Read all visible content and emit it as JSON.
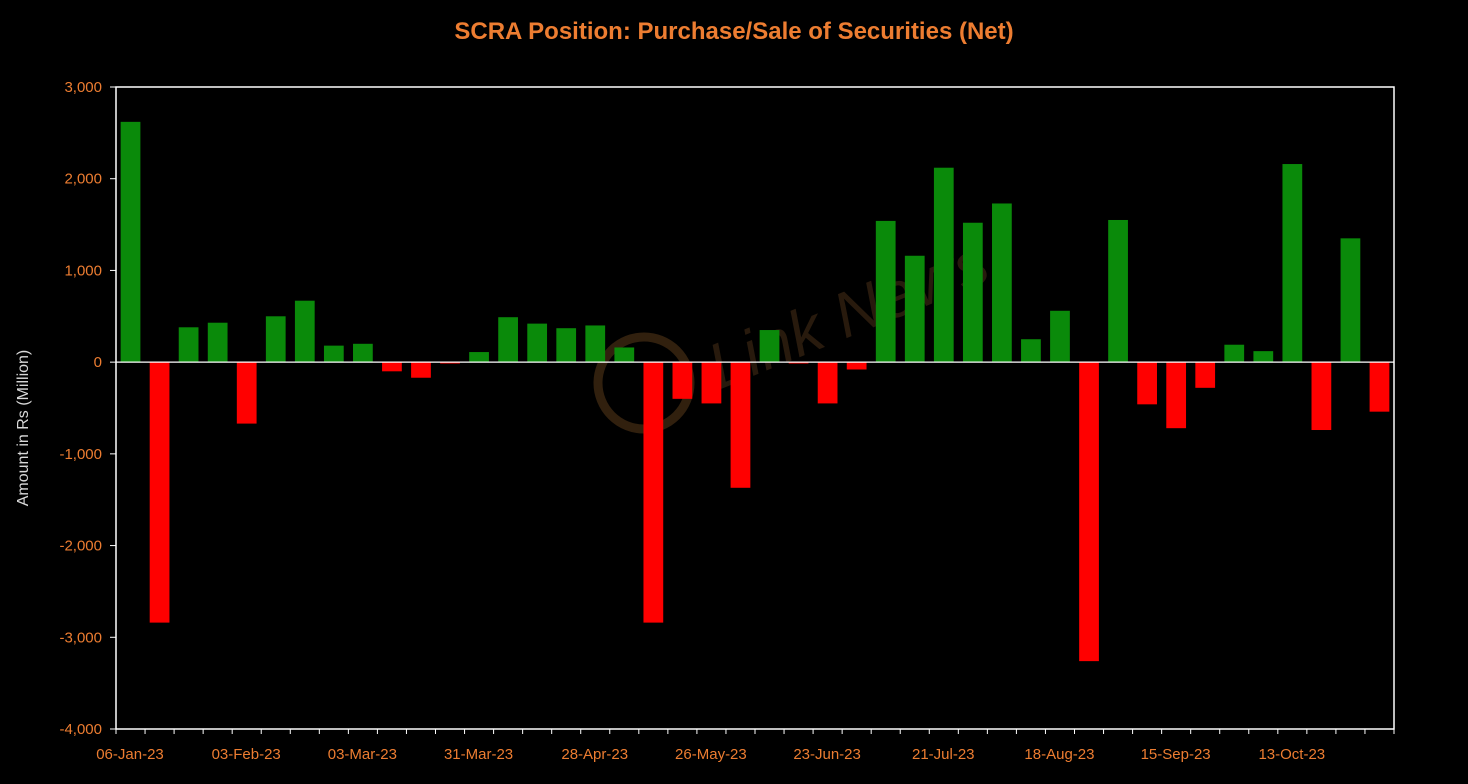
{
  "chart_data": {
    "type": "bar",
    "title": "SCRA Position: Purchase/Sale of Securities (Net)",
    "xlabel": "",
    "ylabel": "Amount in Rs (Million)",
    "ylim": [
      -4000,
      3000
    ],
    "yticks": [
      3000,
      2000,
      1000,
      0,
      -1000,
      -2000,
      -3000,
      -4000
    ],
    "ytick_labels": [
      "3,000",
      "2,000",
      "1,000",
      "0",
      "-1,000",
      "-2,000",
      "-3,000",
      "-4,000"
    ],
    "xtick_labels": [
      "06-Jan-23",
      "03-Feb-23",
      "03-Mar-23",
      "31-Mar-23",
      "28-Apr-23",
      "26-May-23",
      "23-Jun-23",
      "21-Jul-23",
      "18-Aug-23",
      "15-Sep-23",
      "13-Oct-23"
    ],
    "xtick_every": 4,
    "positive_color": "#0A8A0A",
    "negative_color": "#FF0000",
    "axis_color": "#FFFFFF",
    "categories": [
      "06-Jan-23",
      "13-Jan-23",
      "20-Jan-23",
      "27-Jan-23",
      "03-Feb-23",
      "10-Feb-23",
      "17-Feb-23",
      "24-Feb-23",
      "03-Mar-23",
      "10-Mar-23",
      "17-Mar-23",
      "24-Mar-23",
      "31-Mar-23",
      "07-Apr-23",
      "14-Apr-23",
      "21-Apr-23",
      "28-Apr-23",
      "05-May-23",
      "12-May-23",
      "19-May-23",
      "26-May-23",
      "02-Jun-23",
      "09-Jun-23",
      "16-Jun-23",
      "23-Jun-23",
      "30-Jun-23",
      "07-Jul-23",
      "14-Jul-23",
      "21-Jul-23",
      "28-Jul-23",
      "04-Aug-23",
      "11-Aug-23",
      "18-Aug-23",
      "25-Aug-23",
      "01-Sep-23",
      "08-Sep-23",
      "15-Sep-23",
      "22-Sep-23",
      "29-Sep-23",
      "06-Oct-23",
      "13-Oct-23",
      "20-Oct-23",
      "27-Oct-23",
      "03-Nov-23"
    ],
    "values": [
      2620,
      -2840,
      380,
      430,
      -670,
      500,
      670,
      180,
      200,
      -100,
      -170,
      -15,
      110,
      490,
      420,
      370,
      400,
      160,
      -2840,
      -400,
      -450,
      -1370,
      350,
      -15,
      -450,
      -80,
      1540,
      1160,
      2120,
      1520,
      1730,
      250,
      560,
      -3260,
      1550,
      -460,
      -720,
      -280,
      190,
      120,
      2160,
      -740,
      1350,
      -540
    ]
  },
  "watermark": "Link News"
}
